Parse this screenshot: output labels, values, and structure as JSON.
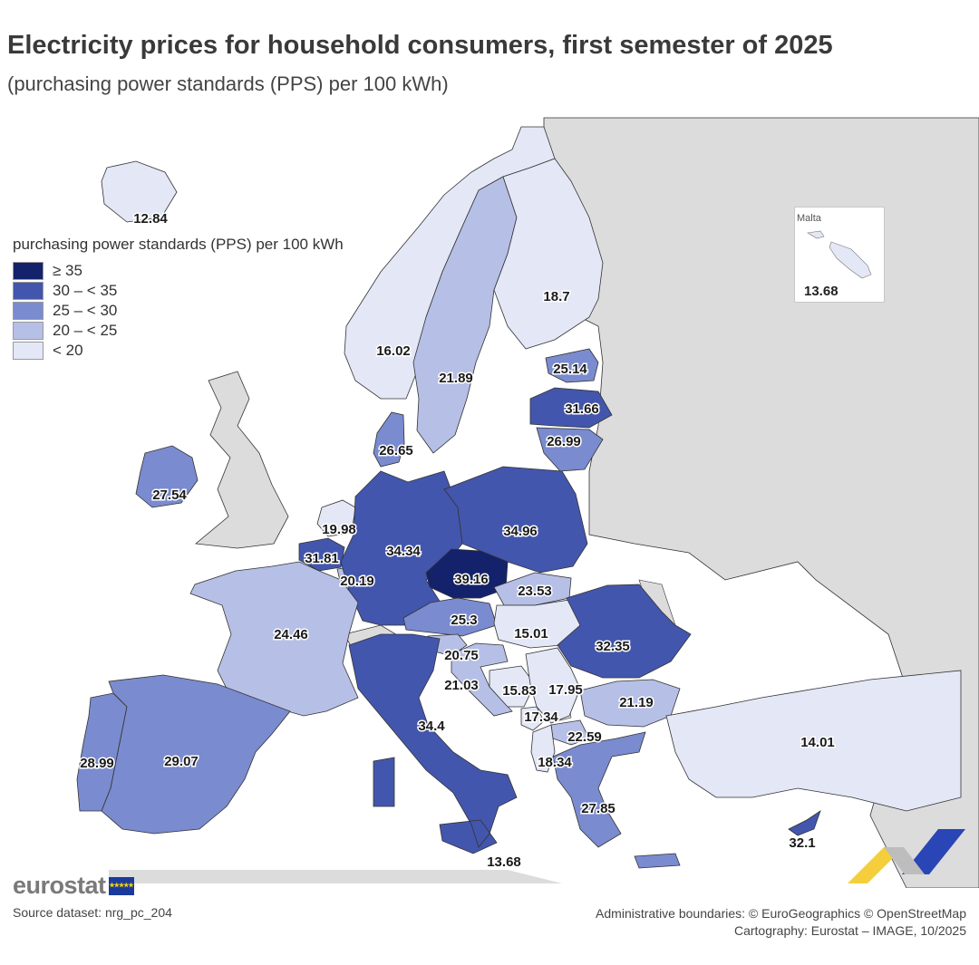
{
  "title": "Electricity prices for household consumers, first semester of 2025",
  "subtitle": "(purchasing power standards (PPS) per 100 kWh)",
  "legend": {
    "title": "purchasing power standards (PPS) per 100 kWh",
    "classes": [
      {
        "label": "≥ 35",
        "color": "#13226b"
      },
      {
        "label": "30 – < 35",
        "color": "#4356ad"
      },
      {
        "label": "25 – < 30",
        "color": "#7a8bcf"
      },
      {
        "label": "20 – < 25",
        "color": "#b6bfe6"
      },
      {
        "label": "< 20",
        "color": "#e3e7f6"
      }
    ]
  },
  "colors": {
    "non_eu_land": "#dcdcdc",
    "sea": "#ffffff",
    "border": "#333333"
  },
  "map_data": {
    "regions": [
      {
        "country": "Iceland",
        "value": "12.84",
        "class": 4
      },
      {
        "country": "Norway",
        "value": "16.02",
        "class": 4
      },
      {
        "country": "Sweden",
        "value": "21.89",
        "class": 3
      },
      {
        "country": "Finland",
        "value": "18.7",
        "class": 4
      },
      {
        "country": "Estonia",
        "value": "25.14",
        "class": 2
      },
      {
        "country": "Latvia",
        "value": "31.66",
        "class": 1
      },
      {
        "country": "Lithuania",
        "value": "26.99",
        "class": 2
      },
      {
        "country": "Denmark",
        "value": "26.65",
        "class": 2
      },
      {
        "country": "Ireland",
        "value": "27.54",
        "class": 2
      },
      {
        "country": "Netherlands",
        "value": "19.98",
        "class": 4
      },
      {
        "country": "Belgium",
        "value": "31.81",
        "class": 1
      },
      {
        "country": "Luxembourg",
        "value": "20.19",
        "class": 3
      },
      {
        "country": "Germany",
        "value": "34.34",
        "class": 1
      },
      {
        "country": "Poland",
        "value": "34.96",
        "class": 1
      },
      {
        "country": "Czechia",
        "value": "39.16",
        "class": 0
      },
      {
        "country": "Slovakia",
        "value": "23.53",
        "class": 3
      },
      {
        "country": "Austria",
        "value": "25.3",
        "class": 2
      },
      {
        "country": "Hungary",
        "value": "15.01",
        "class": 4
      },
      {
        "country": "Romania",
        "value": "32.35",
        "class": 1
      },
      {
        "country": "France",
        "value": "24.46",
        "class": 3
      },
      {
        "country": "Slovenia",
        "value": "20.75",
        "class": 3
      },
      {
        "country": "Croatia",
        "value": "21.03",
        "class": 3
      },
      {
        "country": "Bosnia and Herzegovina",
        "value": "15.83",
        "class": 4
      },
      {
        "country": "Serbia",
        "value": "17.95",
        "class": 4
      },
      {
        "country": "Montenegro",
        "value": "17.34",
        "class": 4
      },
      {
        "country": "Bulgaria",
        "value": "21.19",
        "class": 3
      },
      {
        "country": "North Macedonia",
        "value": "22.59",
        "class": 3
      },
      {
        "country": "Albania",
        "value": "18.34",
        "class": 4
      },
      {
        "country": "Italy",
        "value": "34.4",
        "class": 1
      },
      {
        "country": "Malta",
        "value": "13.68",
        "class": 4
      },
      {
        "country": "Portugal",
        "value": "28.99",
        "class": 2
      },
      {
        "country": "Spain",
        "value": "29.07",
        "class": 2
      },
      {
        "country": "Greece",
        "value": "27.85",
        "class": 2
      },
      {
        "country": "Türkiye",
        "value": "14.01",
        "class": 4
      },
      {
        "country": "Cyprus",
        "value": "32.1",
        "class": 1
      }
    ],
    "inset": {
      "name": "Malta",
      "value": "13.68"
    }
  },
  "footer": {
    "logo_text": "eurostat",
    "source": "Source dataset: nrg_pc_204",
    "boundaries": "Administrative boundaries: © EuroGeographics © OpenStreetMap",
    "cartography": "Cartography: Eurostat – IMAGE, 10/2025"
  }
}
